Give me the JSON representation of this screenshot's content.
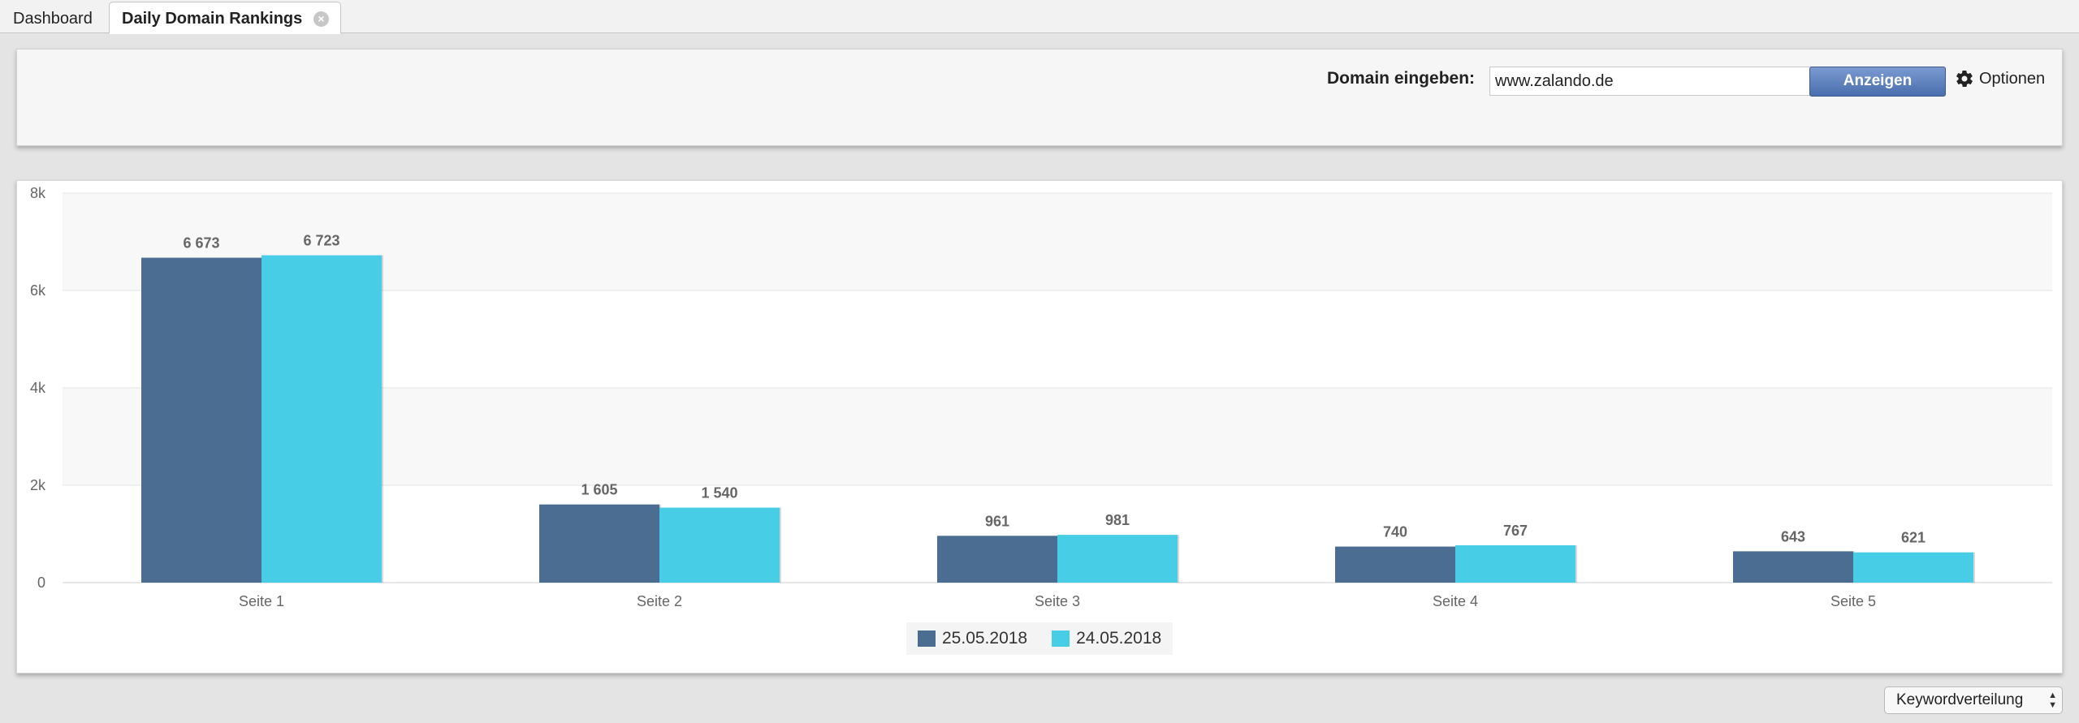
{
  "tabs": [
    {
      "label": "Dashboard"
    },
    {
      "label": "Daily Domain Rankings"
    }
  ],
  "toolbar": {
    "domain_label": "Domain eingeben:",
    "domain_value": "www.zalando.de",
    "show_label": "Anzeigen",
    "options_label": "Optionen"
  },
  "chart_data": {
    "type": "bar",
    "categories": [
      "Seite 1",
      "Seite 2",
      "Seite 3",
      "Seite 4",
      "Seite 5"
    ],
    "series": [
      {
        "name": "25.05.2018",
        "values": [
          6673,
          1605,
          961,
          740,
          643
        ],
        "labels": [
          "6 673",
          "1 605",
          "961",
          "740",
          "643"
        ],
        "color": "#4a6d91"
      },
      {
        "name": "24.05.2018",
        "values": [
          6723,
          1540,
          981,
          767,
          621
        ],
        "labels": [
          "6 723",
          "1 540",
          "981",
          "767",
          "621"
        ],
        "color": "#47cde6"
      }
    ],
    "yticks": [
      {
        "value": 0,
        "label": "0"
      },
      {
        "value": 2000,
        "label": "2k"
      },
      {
        "value": 4000,
        "label": "4k"
      },
      {
        "value": 6000,
        "label": "6k"
      },
      {
        "value": 8000,
        "label": "8k"
      }
    ],
    "ylim": [
      0,
      8000
    ],
    "grid": true,
    "legend": "bottom-center"
  },
  "bottom_select": {
    "value": "Keywordverteilung"
  }
}
